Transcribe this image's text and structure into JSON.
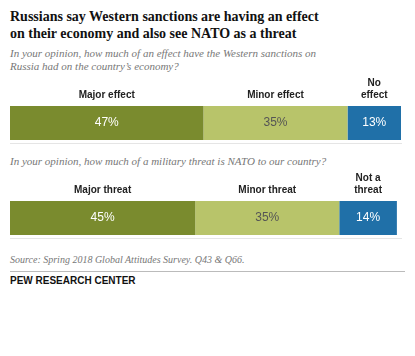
{
  "title": [
    "Russians say Western sanctions are having an effect",
    "on their economy and also see NATO as a threat"
  ],
  "chart_data": [
    {
      "type": "bar",
      "orientation": "horizontal",
      "stacked": true,
      "subtitle": "In your opinion, how much of an effect have the Western sanctions on\nRussia had on the country’s economy?",
      "series": [
        {
          "name": "Major effect",
          "color": "#7a8b2e",
          "values": [
            47
          ],
          "value_labels": [
            "47%"
          ]
        },
        {
          "name": "Minor effect",
          "color": "#b8c46a",
          "values": [
            35
          ],
          "value_labels": [
            "35%"
          ]
        },
        {
          "name": "No\neffect",
          "color": "#2070a8",
          "values": [
            13
          ],
          "value_labels": [
            "13%"
          ]
        }
      ],
      "xlim": [
        0,
        95
      ],
      "grid": false,
      "tick_labels": false,
      "data_labels": true
    },
    {
      "type": "bar",
      "orientation": "horizontal",
      "stacked": true,
      "subtitle": "In your opinion, how much of a military threat is NATO to our country?",
      "series": [
        {
          "name": "Major threat",
          "color": "#7a8b2e",
          "values": [
            45
          ],
          "value_labels": [
            "45%"
          ]
        },
        {
          "name": "Minor threat",
          "color": "#b8c46a",
          "values": [
            35
          ],
          "value_labels": [
            "35%"
          ]
        },
        {
          "name": "Not a\nthreat",
          "color": "#2070a8",
          "values": [
            14
          ],
          "value_labels": [
            "14%"
          ]
        }
      ],
      "xlim": [
        0,
        95
      ],
      "grid": false,
      "tick_labels": false,
      "data_labels": true
    }
  ],
  "annotations": [
    "Source: Spring 2018 Global Attitudes Survey. Q43 & Q66.",
    "PEW RESEARCH CENTER"
  ]
}
